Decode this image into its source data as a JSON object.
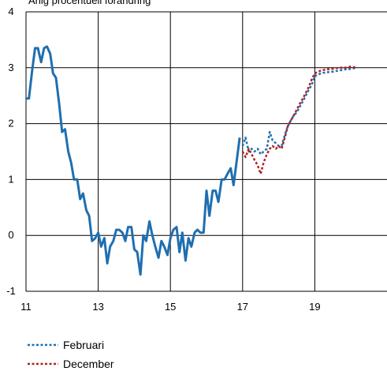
{
  "chart_data": {
    "type": "line",
    "title": "Årlig procentuell förändring",
    "xlabel": "",
    "ylabel": "",
    "xlim": [
      11,
      21
    ],
    "ylim": [
      -1,
      4
    ],
    "x_ticks": [
      11,
      13,
      15,
      17,
      19
    ],
    "y_ticks": [
      -1,
      0,
      1,
      2,
      3,
      4
    ],
    "x_tick_labels": [
      "11",
      "13",
      "15",
      "17",
      "19"
    ],
    "y_tick_labels": [
      "-1",
      "0",
      "1",
      "2",
      "3",
      "4"
    ],
    "grid": true,
    "legend_position": "bottom-left",
    "series": [
      {
        "name": "",
        "style": "solid",
        "color": "#1f6fb0",
        "x": [
          11.0,
          11.08,
          11.17,
          11.25,
          11.33,
          11.42,
          11.5,
          11.58,
          11.67,
          11.75,
          11.83,
          11.92,
          12.0,
          12.08,
          12.17,
          12.25,
          12.33,
          12.42,
          12.5,
          12.58,
          12.67,
          12.75,
          12.83,
          12.92,
          13.0,
          13.08,
          13.17,
          13.25,
          13.33,
          13.42,
          13.5,
          13.58,
          13.67,
          13.75,
          13.83,
          13.92,
          14.0,
          14.08,
          14.17,
          14.25,
          14.33,
          14.42,
          14.5,
          14.58,
          14.67,
          14.75,
          14.83,
          14.92,
          15.0,
          15.08,
          15.17,
          15.25,
          15.33,
          15.42,
          15.5,
          15.58,
          15.67,
          15.75,
          15.83,
          15.92,
          16.0,
          16.08,
          16.17,
          16.25,
          16.33,
          16.42,
          16.5,
          16.58,
          16.67,
          16.75,
          16.83,
          16.92
        ],
        "values": [
          2.45,
          2.45,
          2.95,
          3.35,
          3.35,
          3.1,
          3.35,
          3.38,
          3.25,
          2.9,
          2.82,
          2.35,
          1.85,
          1.9,
          1.5,
          1.3,
          1.0,
          1.0,
          0.65,
          0.75,
          0.45,
          0.35,
          -0.1,
          -0.05,
          0.05,
          -0.2,
          -0.05,
          -0.5,
          -0.2,
          -0.1,
          0.1,
          0.1,
          0.05,
          -0.1,
          0.15,
          0.15,
          -0.25,
          -0.3,
          -0.7,
          0.0,
          -0.1,
          0.25,
          0.0,
          -0.2,
          -0.4,
          -0.1,
          -0.2,
          -0.35,
          -0.05,
          0.1,
          0.15,
          -0.3,
          0.05,
          -0.45,
          -0.05,
          -0.2,
          0.05,
          0.1,
          0.05,
          0.05,
          0.8,
          0.35,
          0.8,
          0.8,
          0.6,
          1.0,
          1.0,
          1.1,
          1.2,
          0.9,
          1.3,
          1.75
        ]
      },
      {
        "name": "Februari",
        "style": "dotted",
        "color": "#1f6fb0",
        "x": [
          17.0,
          17.08,
          17.17,
          17.25,
          17.33,
          17.42,
          17.5,
          17.58,
          17.67,
          17.75,
          17.83,
          17.92,
          18.0,
          18.08,
          18.17,
          18.25,
          18.33,
          18.42,
          18.5,
          18.58,
          18.67,
          18.75,
          18.83,
          18.92,
          19.0,
          19.17,
          19.33,
          19.5,
          19.67,
          19.83,
          20.0,
          20.17
        ],
        "values": [
          1.6,
          1.75,
          1.5,
          1.55,
          1.5,
          1.55,
          1.45,
          1.5,
          1.55,
          1.85,
          1.7,
          1.65,
          1.6,
          1.6,
          1.8,
          1.95,
          2.05,
          2.15,
          2.2,
          2.3,
          2.4,
          2.5,
          2.6,
          2.7,
          2.85,
          2.9,
          2.92,
          2.93,
          2.95,
          2.97,
          2.98,
          3.0
        ]
      },
      {
        "name": "December",
        "style": "dotted",
        "color": "#b22222",
        "x": [
          17.0,
          17.08,
          17.17,
          17.25,
          17.33,
          17.42,
          17.5,
          17.58,
          17.67,
          17.75,
          17.83,
          17.92,
          18.0,
          18.08,
          18.17,
          18.25,
          18.33,
          18.42,
          18.5,
          18.58,
          18.67,
          18.75,
          18.83,
          18.92,
          19.0,
          19.17,
          19.33,
          19.5,
          19.67,
          19.83,
          20.0,
          20.17
        ],
        "values": [
          1.5,
          1.4,
          1.55,
          1.45,
          1.35,
          1.25,
          1.1,
          1.3,
          1.45,
          1.55,
          1.6,
          1.55,
          1.6,
          1.55,
          1.75,
          1.95,
          2.05,
          2.15,
          2.25,
          2.35,
          2.45,
          2.55,
          2.65,
          2.8,
          2.9,
          2.95,
          2.97,
          2.98,
          3.0,
          3.0,
          3.02,
          3.0
        ]
      }
    ]
  }
}
